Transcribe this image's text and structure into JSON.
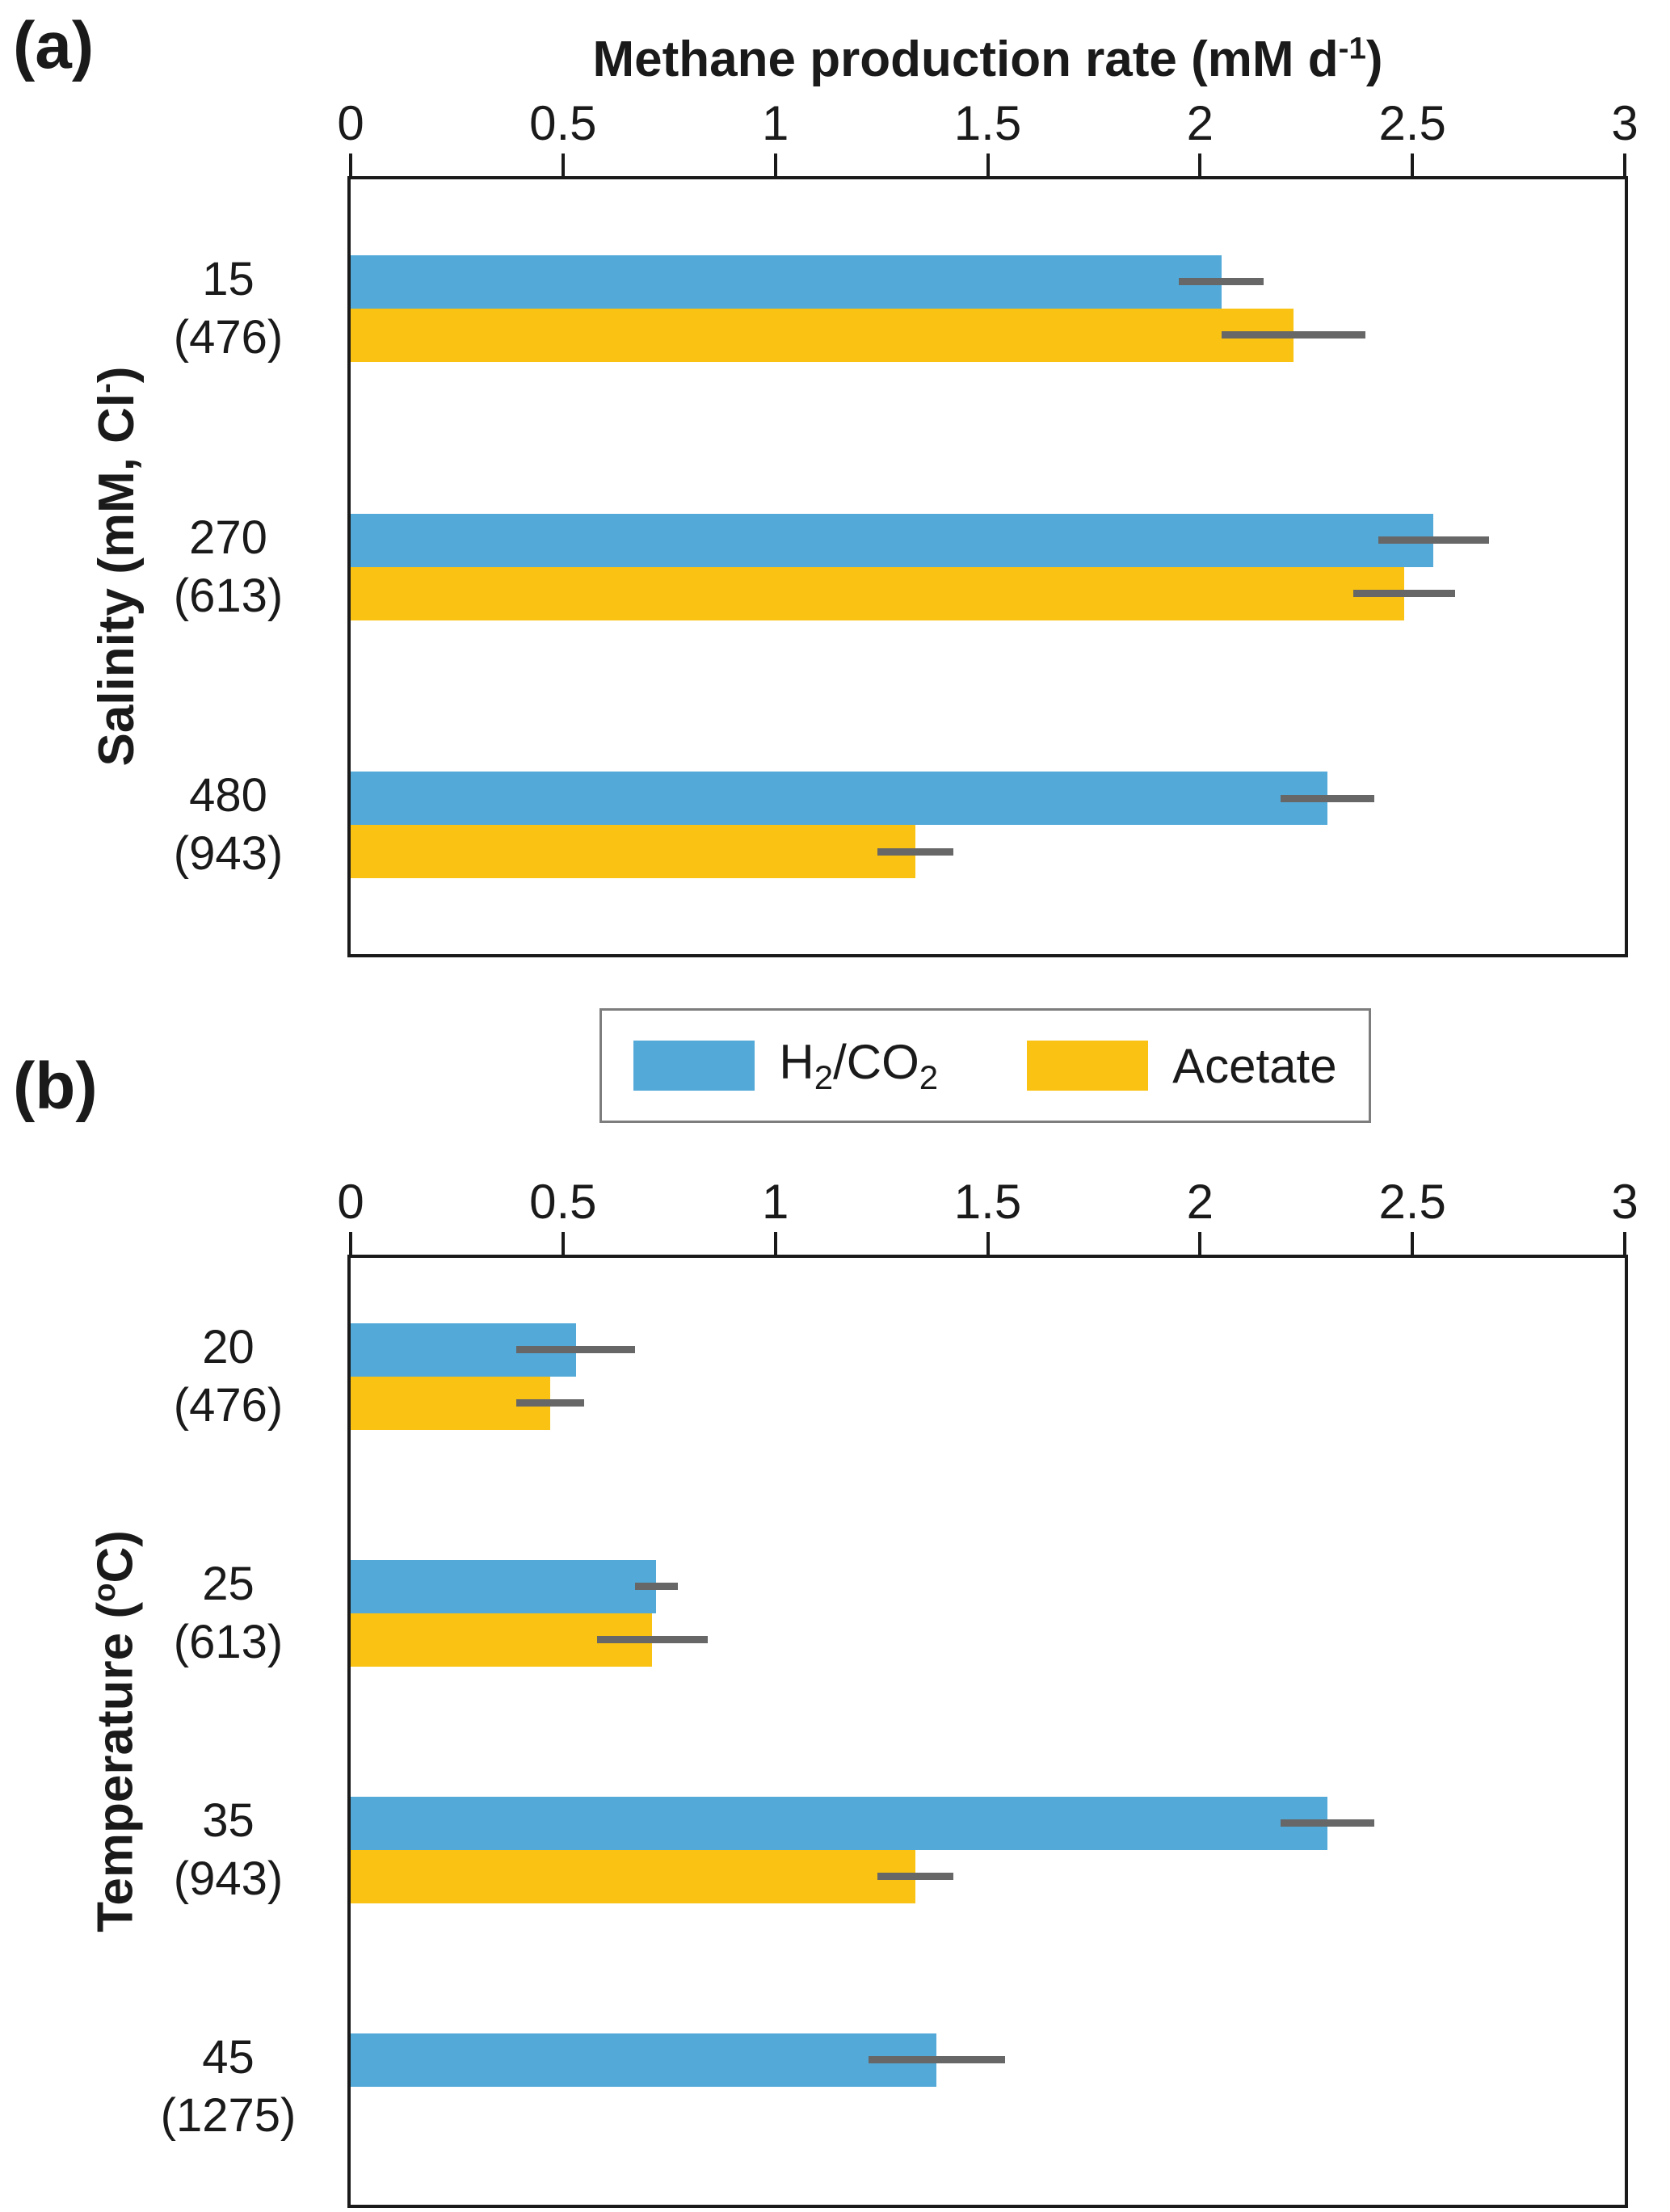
{
  "figure": {
    "panel_a": {
      "tag": "(a)"
    },
    "panel_b": {
      "tag": "(b)"
    }
  },
  "colors": {
    "h2co2": "#53A9D8",
    "acetate": "#FAC213",
    "error_bar": "#676767",
    "axis": "#1a1a1a"
  },
  "legend": {
    "items": [
      {
        "name": "H2/CO2",
        "name_parts": [
          {
            "t": "H"
          },
          {
            "t": "2",
            "sub": true
          },
          {
            "t": "/CO"
          },
          {
            "t": "2",
            "sub": true
          }
        ],
        "color": "#53A9D8"
      },
      {
        "name": "Acetate",
        "name_parts": [
          {
            "t": "Acetate"
          }
        ],
        "color": "#FAC213"
      }
    ]
  },
  "chart_data": [
    {
      "type": "bar",
      "orientation": "horizontal",
      "title": "Methane production rate (mM d-1)",
      "title_parts": [
        {
          "t": "Methane production rate (mM d"
        },
        {
          "t": "-1",
          "sup": true
        },
        {
          "t": ")"
        }
      ],
      "ylabel": "Salinity (mM, Cl-)",
      "ylabel_parts": [
        {
          "t": "Salinity (mM, Cl"
        },
        {
          "t": "-",
          "sup": true
        },
        {
          "t": ")"
        }
      ],
      "xlim": [
        0,
        3
      ],
      "xticks": [
        "0",
        "0.5",
        "1",
        "1.5",
        "2",
        "2.5",
        "3"
      ],
      "xtick_values": [
        0,
        0.5,
        1,
        1.5,
        2,
        2.5,
        3
      ],
      "grid": false,
      "legend_position": "below",
      "categories": [
        {
          "label": "15",
          "sublabel": "(476)"
        },
        {
          "label": "270",
          "sublabel": "(613)"
        },
        {
          "label": "480",
          "sublabel": "(943)"
        }
      ],
      "series": [
        {
          "name": "H2/CO2",
          "color": "#53A9D8",
          "values": [
            2.05,
            2.55,
            2.3
          ],
          "errors": [
            0.1,
            0.13,
            0.11
          ]
        },
        {
          "name": "Acetate",
          "color": "#FAC213",
          "values": [
            2.22,
            2.48,
            1.33
          ],
          "errors": [
            0.17,
            0.12,
            0.09
          ]
        }
      ]
    },
    {
      "type": "bar",
      "orientation": "horizontal",
      "ylabel": "Temperature (oC)",
      "ylabel_parts": [
        {
          "t": "Temperature ("
        },
        {
          "t": "o",
          "sup": true
        },
        {
          "t": "C)"
        }
      ],
      "xlim": [
        0,
        3
      ],
      "xticks": [
        "0",
        "0.5",
        "1",
        "1.5",
        "2",
        "2.5",
        "3"
      ],
      "xtick_values": [
        0,
        0.5,
        1,
        1.5,
        2,
        2.5,
        3
      ],
      "grid": false,
      "categories": [
        {
          "label": "20",
          "sublabel": "(476)"
        },
        {
          "label": "25",
          "sublabel": "(613)"
        },
        {
          "label": "35",
          "sublabel": "(943)"
        },
        {
          "label": "45",
          "sublabel": "(1275)"
        }
      ],
      "series": [
        {
          "name": "H2/CO2",
          "color": "#53A9D8",
          "values": [
            0.53,
            0.72,
            2.3,
            1.38
          ],
          "errors": [
            0.14,
            0.05,
            0.11,
            0.16
          ]
        },
        {
          "name": "Acetate",
          "color": "#FAC213",
          "values": [
            0.47,
            0.71,
            1.33,
            null
          ],
          "errors": [
            0.08,
            0.13,
            0.09,
            null
          ]
        }
      ]
    }
  ]
}
